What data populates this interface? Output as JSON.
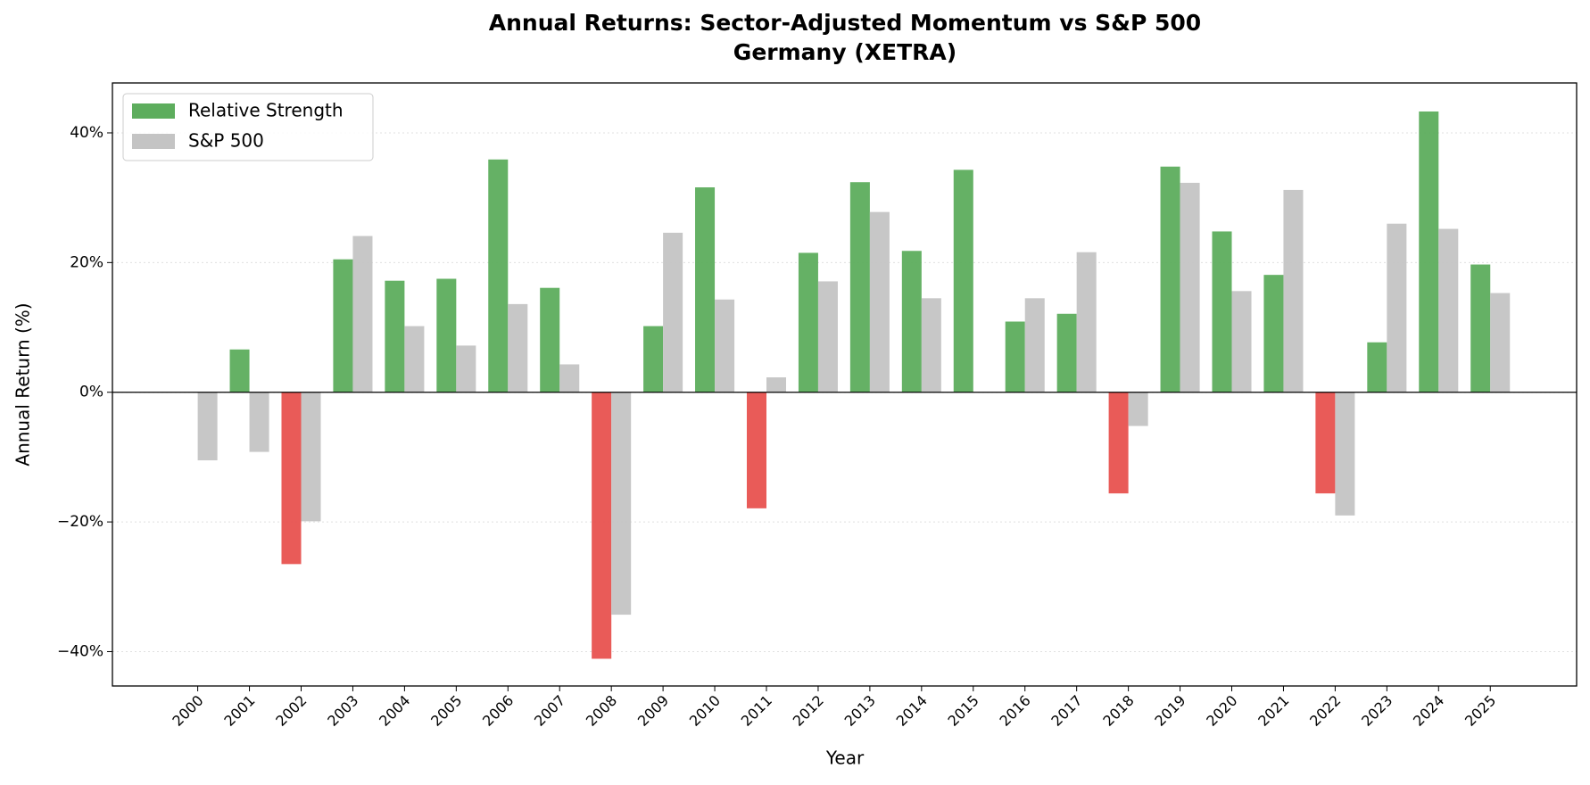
{
  "chart_data": {
    "type": "bar",
    "title": "Annual Returns: Sector-Adjusted Momentum vs S&P 500",
    "subtitle": "Germany (XETRA)",
    "x_label": "Year",
    "y_label": "Annual Return (%)",
    "categories": [
      "2000",
      "2001",
      "2002",
      "2003",
      "2004",
      "2005",
      "2006",
      "2007",
      "2008",
      "2009",
      "2010",
      "2011",
      "2012",
      "2013",
      "2014",
      "2015",
      "2016",
      "2017",
      "2018",
      "2019",
      "2020",
      "2021",
      "2022",
      "2023",
      "2024",
      "2025"
    ],
    "series": [
      {
        "name": "Relative Strength",
        "color": "#5dad5d",
        "negative_color": "#e8524f",
        "values": [
          null,
          6.6,
          -26.5,
          20.5,
          17.2,
          17.5,
          35.9,
          16.1,
          -41.1,
          10.2,
          31.6,
          -17.9,
          21.5,
          32.4,
          21.8,
          34.3,
          10.9,
          12.1,
          -15.6,
          34.8,
          24.8,
          18.1,
          -15.6,
          7.7,
          43.3,
          19.7
        ]
      },
      {
        "name": "S&P 500",
        "color": "#c4c4c4",
        "values": [
          -10.5,
          -9.2,
          -19.9,
          24.1,
          10.2,
          7.2,
          13.6,
          4.3,
          -34.3,
          24.6,
          14.3,
          2.3,
          17.1,
          27.8,
          14.5,
          null,
          14.5,
          21.6,
          -5.2,
          32.3,
          15.6,
          31.2,
          -19.0,
          26.0,
          25.2,
          15.3
        ]
      }
    ],
    "ylim": [
      -45.3,
      47.7
    ],
    "yticks": [
      {
        "value": -40,
        "label": "−40%"
      },
      {
        "value": -20,
        "label": "−20%"
      },
      {
        "value": 0,
        "label": "0%"
      },
      {
        "value": 20,
        "label": "20%"
      },
      {
        "value": 40,
        "label": "40%"
      }
    ],
    "grid": true,
    "legend": "upper-left"
  }
}
